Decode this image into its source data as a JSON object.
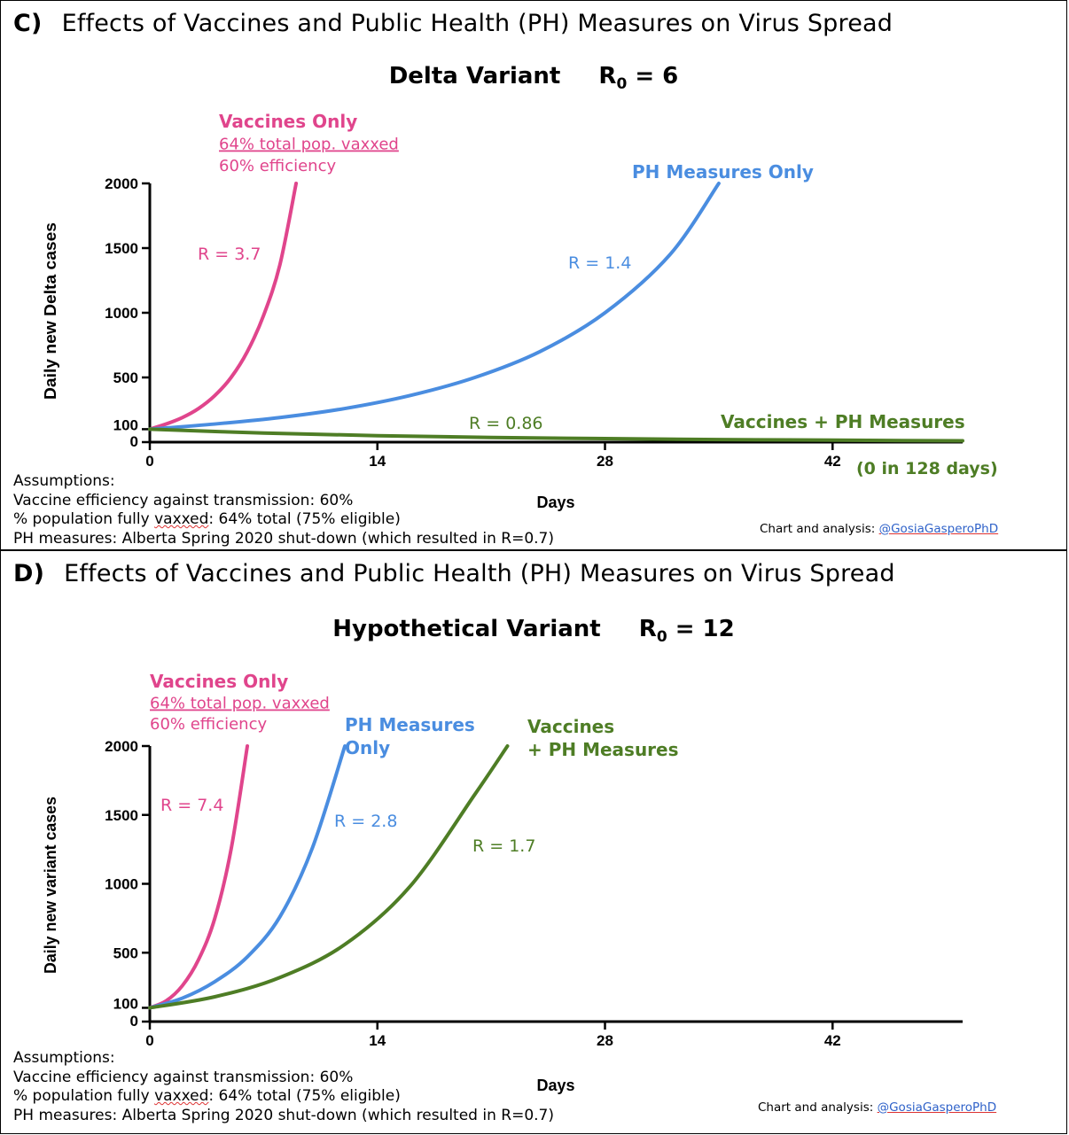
{
  "colors": {
    "pink": "#e0458c",
    "blue": "#4a8de0",
    "green": "#4e7d25",
    "axis": "#000000"
  },
  "panels": [
    {
      "label": "C)",
      "title": "Effects of Vaccines and Public Health (PH) Measures on Virus Spread",
      "subtitle": "Delta Variant",
      "r0_label": "R",
      "r0_sub": "0",
      "r0_value": "= 6",
      "assumptions": {
        "heading": "Assumptions:",
        "line1": "Vaccine efficiency against transmission: 60%",
        "line2_a": "% population fully ",
        "line2_b": "vaxxed",
        "line2_c": ": 64% total (75% eligible)",
        "line3": "PH measures: Alberta Spring 2020 shut-down (which resulted in R=0.7)"
      },
      "credit_label": "Chart and analysis:",
      "credit_handle": "@GosiaGasperoPhD"
    },
    {
      "label": "D)",
      "title": "Effects of Vaccines and Public Health (PH) Measures on Virus Spread",
      "subtitle": "Hypothetical Variant",
      "r0_label": "R",
      "r0_sub": "0",
      "r0_value": "= 12",
      "assumptions": {
        "heading": "Assumptions:",
        "line1": "Vaccine efficiency against transmission: 60%",
        "line2_a": "% population fully ",
        "line2_b": "vaxxed",
        "line2_c": ": 64% total (75% eligible)",
        "line3": "PH measures: Alberta Spring 2020 shut-down (which resulted in R=0.7)"
      },
      "credit_label": "Chart and analysis:",
      "credit_handle": "@GosiaGasperoPhD"
    }
  ],
  "chart_data": [
    {
      "type": "line",
      "title": "Delta Variant R0 = 6",
      "xlabel": "Days",
      "ylabel": "Daily new Delta cases",
      "xlim": [
        0,
        50
      ],
      "ylim": [
        0,
        2000
      ],
      "xticks": [
        0,
        14,
        28,
        42
      ],
      "yticks": [
        0,
        100,
        500,
        1000,
        1500,
        2000
      ],
      "series": [
        {
          "name": "Vaccines Only",
          "color": "pink",
          "r_label": "R = 3.7",
          "legend": [
            "Vaccines Only",
            "64% total pop. vaxxed",
            "60% efficiency"
          ],
          "x": [
            0,
            1,
            2,
            3,
            4,
            5,
            6,
            7,
            8,
            9
          ],
          "y": [
            100,
            140,
            190,
            260,
            360,
            500,
            700,
            980,
            1370,
            2000
          ]
        },
        {
          "name": "PH Measures Only",
          "color": "blue",
          "r_label": "R = 1.4",
          "legend": [
            "PH Measures Only"
          ],
          "x": [
            0,
            4,
            8,
            12,
            16,
            20,
            24,
            28,
            32,
            35
          ],
          "y": [
            100,
            140,
            190,
            260,
            360,
            500,
            700,
            1000,
            1450,
            2000
          ]
        },
        {
          "name": "Vaccines + PH Measures",
          "color": "green",
          "r_label": "R = 0.86",
          "legend": [
            "Vaccines + PH Measures"
          ],
          "note": "(0 in 128 days)",
          "x": [
            0,
            7,
            14,
            21,
            28,
            35,
            42,
            50
          ],
          "y": [
            100,
            70,
            50,
            36,
            27,
            20,
            15,
            10
          ]
        }
      ]
    },
    {
      "type": "line",
      "title": "Hypothetical Variant R0 = 12",
      "xlabel": "Days",
      "ylabel": "Daily new variant cases",
      "xlim": [
        0,
        50
      ],
      "ylim": [
        0,
        2000
      ],
      "xticks": [
        0,
        14,
        28,
        42
      ],
      "yticks": [
        0,
        100,
        500,
        1000,
        1500,
        2000
      ],
      "series": [
        {
          "name": "Vaccines Only",
          "color": "pink",
          "r_label": "R = 7.4",
          "legend": [
            "Vaccines Only",
            "64% total pop. vaxxed",
            "60% efficiency"
          ],
          "x": [
            0,
            1,
            2,
            3,
            4,
            5,
            6
          ],
          "y": [
            100,
            150,
            260,
            450,
            750,
            1250,
            2000
          ]
        },
        {
          "name": "PH Measures Only",
          "color": "blue",
          "r_label": "R = 2.8",
          "legend": [
            "PH Measures",
            "Only"
          ],
          "x": [
            0,
            2,
            4,
            6,
            8,
            10,
            12
          ],
          "y": [
            100,
            170,
            290,
            470,
            760,
            1260,
            2000
          ]
        },
        {
          "name": "Vaccines + PH Measures",
          "color": "green",
          "r_label": "R = 1.7",
          "legend": [
            "Vaccines",
            "+ PH Measures"
          ],
          "x": [
            0,
            4,
            8,
            12,
            16,
            20,
            22
          ],
          "y": [
            100,
            180,
            320,
            560,
            980,
            1650,
            2000
          ]
        }
      ]
    }
  ]
}
